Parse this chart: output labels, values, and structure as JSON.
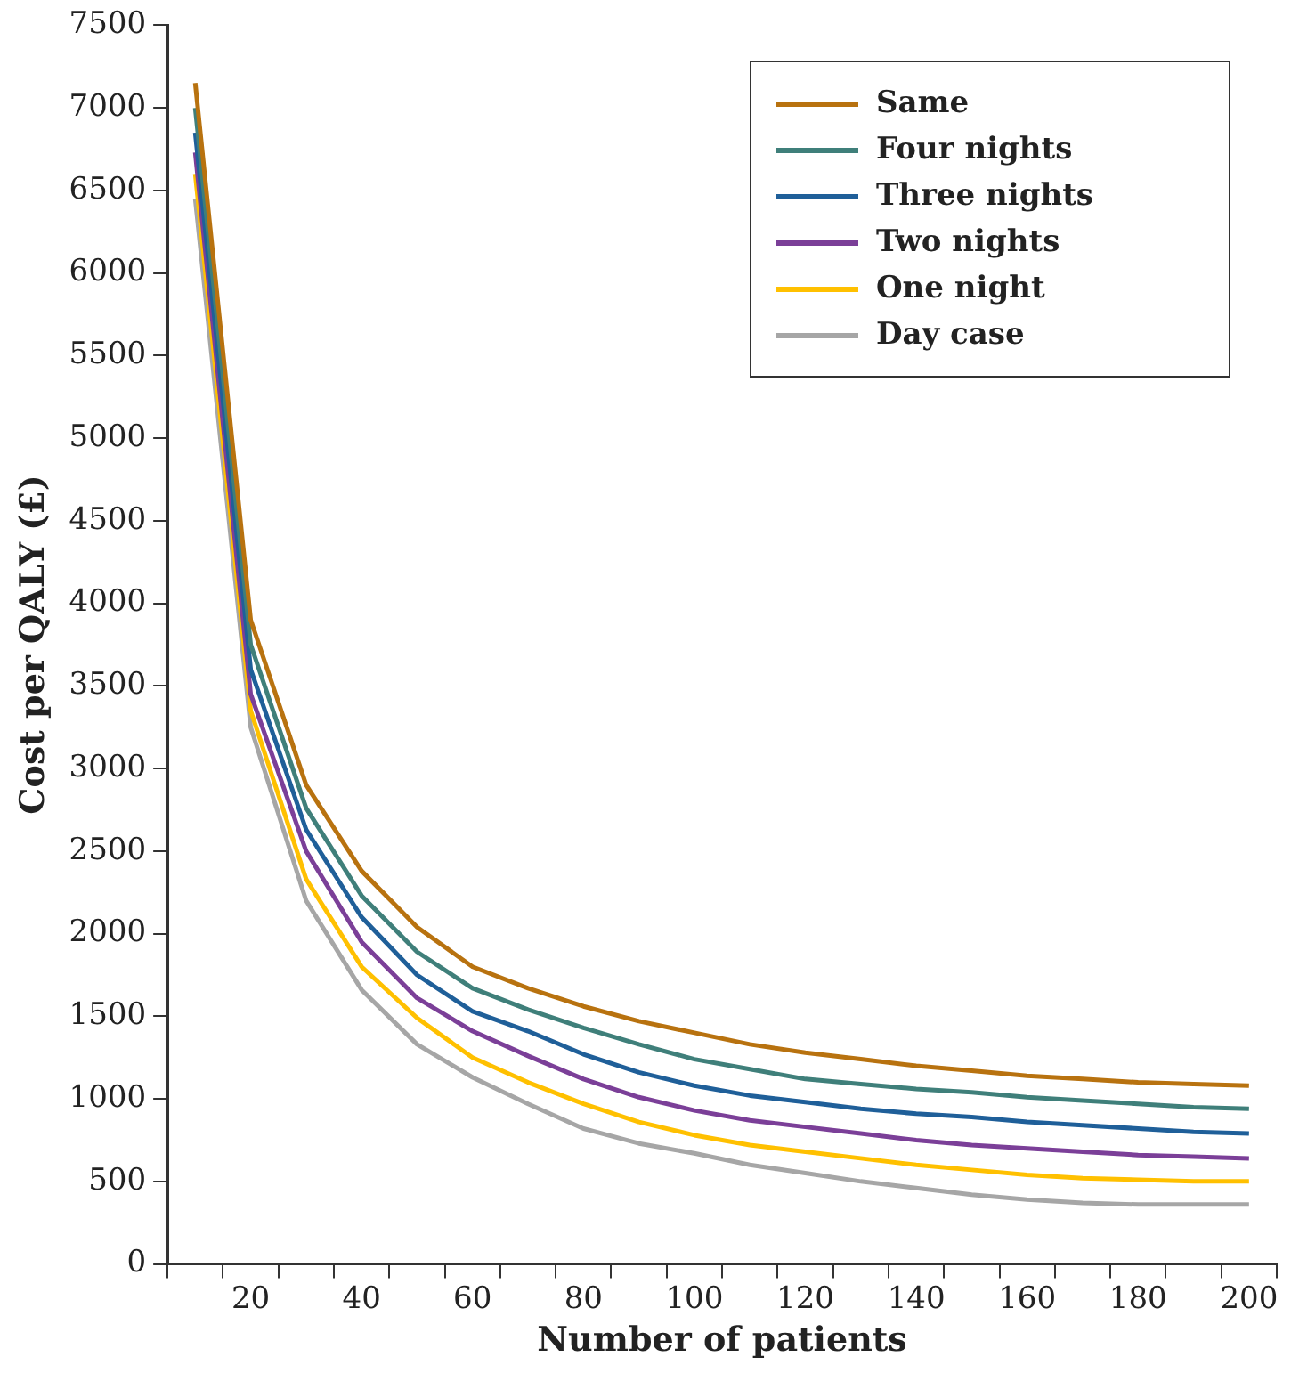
{
  "chart_data": {
    "type": "line",
    "xlabel": "Number of patients",
    "ylabel": "Cost per QALY (£)",
    "categories": [
      null,
      "20",
      null,
      "40",
      null,
      "60",
      null,
      "80",
      null,
      "100",
      null,
      "120",
      null,
      "140",
      null,
      "160",
      null,
      "180",
      null,
      "200"
    ],
    "ylim": [
      0,
      7500
    ],
    "yticks": [
      0,
      500,
      1000,
      1500,
      2000,
      2500,
      3000,
      3500,
      4000,
      4500,
      5000,
      5500,
      6000,
      6500,
      7000,
      7500
    ],
    "grid": false,
    "legend": "top right",
    "marker": "none",
    "line_style": "solid",
    "series": [
      {
        "name": "Same",
        "color": "#b8720f",
        "values": [
          7150,
          3900,
          2900,
          2380,
          2040,
          1800,
          1670,
          1560,
          1470,
          1400,
          1330,
          1280,
          1240,
          1200,
          1170,
          1140,
          1120,
          1100,
          1090,
          1080
        ]
      },
      {
        "name": "Four nights",
        "color": "#3f7f7a",
        "values": [
          7000,
          3750,
          2760,
          2230,
          1890,
          1670,
          1540,
          1430,
          1330,
          1240,
          1180,
          1120,
          1090,
          1060,
          1040,
          1010,
          990,
          970,
          950,
          940
        ]
      },
      {
        "name": "Three nights",
        "color": "#1f5f99",
        "values": [
          6850,
          3600,
          2630,
          2100,
          1750,
          1530,
          1410,
          1270,
          1160,
          1080,
          1020,
          980,
          940,
          910,
          890,
          860,
          840,
          820,
          800,
          790
        ]
      },
      {
        "name": "Two nights",
        "color": "#7b3f98",
        "values": [
          6730,
          3450,
          2500,
          1950,
          1610,
          1410,
          1260,
          1120,
          1010,
          930,
          870,
          830,
          790,
          750,
          720,
          700,
          680,
          660,
          650,
          640
        ]
      },
      {
        "name": "One night",
        "color": "#ffc000",
        "values": [
          6600,
          3350,
          2330,
          1800,
          1490,
          1250,
          1100,
          970,
          860,
          780,
          720,
          680,
          640,
          600,
          570,
          540,
          520,
          510,
          500,
          500
        ]
      },
      {
        "name": "Day case",
        "color": "#a6a6a6",
        "values": [
          6450,
          3250,
          2200,
          1660,
          1330,
          1130,
          970,
          820,
          730,
          670,
          600,
          550,
          500,
          460,
          420,
          390,
          370,
          360,
          360,
          360
        ]
      }
    ]
  }
}
